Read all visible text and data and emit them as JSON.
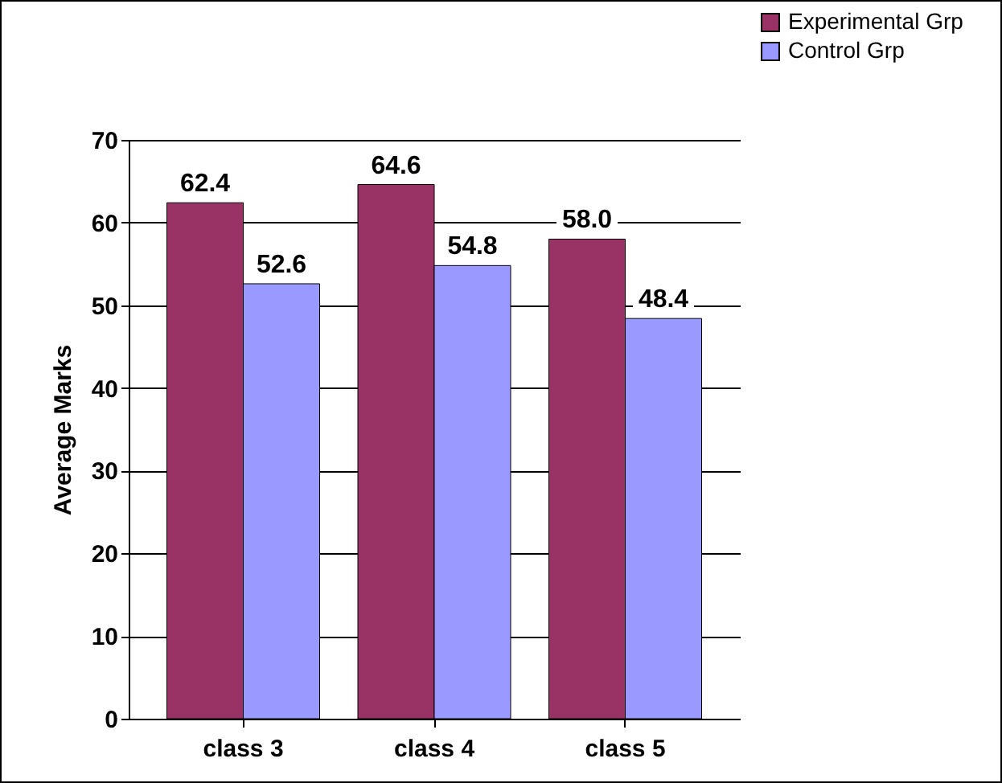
{
  "chart_data": {
    "type": "bar",
    "ylabel": "Average Marks",
    "categories": [
      "class 3",
      "class 4",
      "class 5"
    ],
    "series": [
      {
        "name": "Experimental Grp",
        "color": "#993366",
        "values": [
          62.4,
          64.6,
          58.0
        ],
        "value_labels": [
          "62.4",
          "64.6",
          "58.0"
        ]
      },
      {
        "name": "Control Grp",
        "color": "#9999ff",
        "values": [
          52.6,
          54.8,
          48.4
        ],
        "value_labels": [
          "52.6",
          "54.8",
          "48.4"
        ]
      }
    ],
    "ylim": [
      0,
      70
    ],
    "yticks": [
      0,
      10,
      20,
      30,
      40,
      50,
      60,
      70
    ],
    "grid": "y",
    "legend": "top right"
  }
}
